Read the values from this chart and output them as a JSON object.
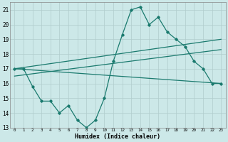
{
  "xlabel": "Humidex (Indice chaleur)",
  "bg_color": "#cce8e8",
  "grid_color": "#b0cccc",
  "line_color": "#1a7a6e",
  "xlim": [
    -0.5,
    23.5
  ],
  "ylim": [
    13,
    21.5
  ],
  "yticks": [
    13,
    14,
    15,
    16,
    17,
    18,
    19,
    20,
    21
  ],
  "xticks": [
    0,
    1,
    2,
    3,
    4,
    5,
    6,
    7,
    8,
    9,
    10,
    11,
    12,
    13,
    14,
    15,
    16,
    17,
    18,
    19,
    20,
    21,
    22,
    23
  ],
  "line_main_x": [
    0,
    1,
    2,
    3,
    4,
    5,
    6,
    7,
    8,
    9,
    10,
    11,
    12,
    13,
    14,
    15,
    16,
    17,
    18,
    19,
    20,
    21,
    22,
    23
  ],
  "line_main_y": [
    17.0,
    17.0,
    15.8,
    14.8,
    14.8,
    14.0,
    14.5,
    13.5,
    13.0,
    13.5,
    15.0,
    17.5,
    19.3,
    21.0,
    21.2,
    20.0,
    20.5,
    19.5,
    19.0,
    18.5,
    17.5,
    17.0,
    16.0,
    16.0
  ],
  "line2_x": [
    0,
    23
  ],
  "line2_y": [
    17.0,
    19.0
  ],
  "line3_x": [
    0,
    23
  ],
  "line3_y": [
    16.5,
    18.3
  ],
  "line4_x": [
    0,
    23
  ],
  "line4_y": [
    17.0,
    16.0
  ]
}
